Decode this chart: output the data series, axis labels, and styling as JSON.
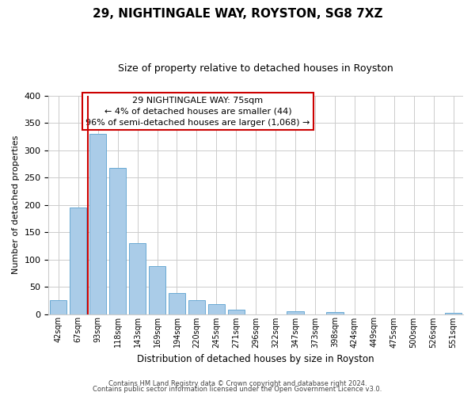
{
  "title": "29, NIGHTINGALE WAY, ROYSTON, SG8 7XZ",
  "subtitle": "Size of property relative to detached houses in Royston",
  "xlabel": "Distribution of detached houses by size in Royston",
  "ylabel": "Number of detached properties",
  "bar_labels": [
    "42sqm",
    "67sqm",
    "93sqm",
    "118sqm",
    "143sqm",
    "169sqm",
    "194sqm",
    "220sqm",
    "245sqm",
    "271sqm",
    "296sqm",
    "322sqm",
    "347sqm",
    "373sqm",
    "398sqm",
    "424sqm",
    "449sqm",
    "475sqm",
    "500sqm",
    "526sqm",
    "551sqm"
  ],
  "bar_values": [
    25,
    195,
    330,
    267,
    130,
    87,
    38,
    26,
    18,
    8,
    0,
    0,
    5,
    0,
    3,
    0,
    0,
    0,
    0,
    0,
    2
  ],
  "bar_color": "#aacce8",
  "bar_edge_color": "#6aaad4",
  "property_line_x": 1.5,
  "property_line_color": "#cc0000",
  "ylim": [
    0,
    400
  ],
  "yticks": [
    0,
    50,
    100,
    150,
    200,
    250,
    300,
    350,
    400
  ],
  "annotation_title": "29 NIGHTINGALE WAY: 75sqm",
  "annotation_line1": "← 4% of detached houses are smaller (44)",
  "annotation_line2": "96% of semi-detached houses are larger (1,068) →",
  "footer1": "Contains HM Land Registry data © Crown copyright and database right 2024.",
  "footer2": "Contains public sector information licensed under the Open Government Licence v3.0.",
  "background_color": "#ffffff",
  "grid_color": "#cccccc"
}
